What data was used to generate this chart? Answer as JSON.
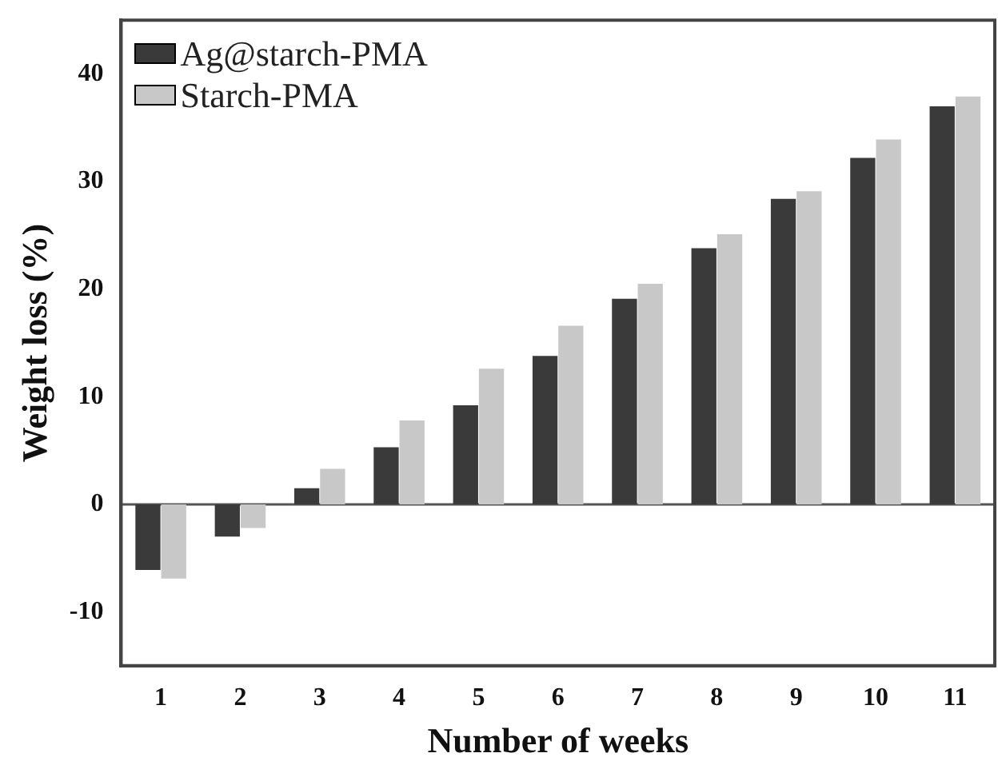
{
  "chart_data": {
    "type": "bar",
    "xlabel": "Number of weeks",
    "ylabel": "Weight loss (%)",
    "categories": [
      "1",
      "2",
      "3",
      "4",
      "5",
      "6",
      "7",
      "8",
      "9",
      "10",
      "11"
    ],
    "series": [
      {
        "name": "Ag@starch-PMA",
        "color": "#3a3a3a",
        "values": [
          -6.1,
          -3.0,
          1.5,
          5.3,
          9.2,
          13.8,
          19.1,
          23.8,
          28.4,
          32.2,
          37.0
        ]
      },
      {
        "name": "Starch-PMA",
        "color": "#c8c8c8",
        "values": [
          -6.9,
          -2.2,
          3.3,
          7.8,
          12.6,
          16.6,
          20.5,
          25.1,
          29.1,
          33.9,
          37.9
        ]
      }
    ],
    "ref_lines": [
      {
        "axis": "y",
        "value": 0,
        "color": "#555555"
      }
    ],
    "ylim": [
      -15,
      45
    ],
    "yticks": [
      -10,
      0,
      10,
      20,
      30,
      40
    ],
    "legend": "top left"
  }
}
